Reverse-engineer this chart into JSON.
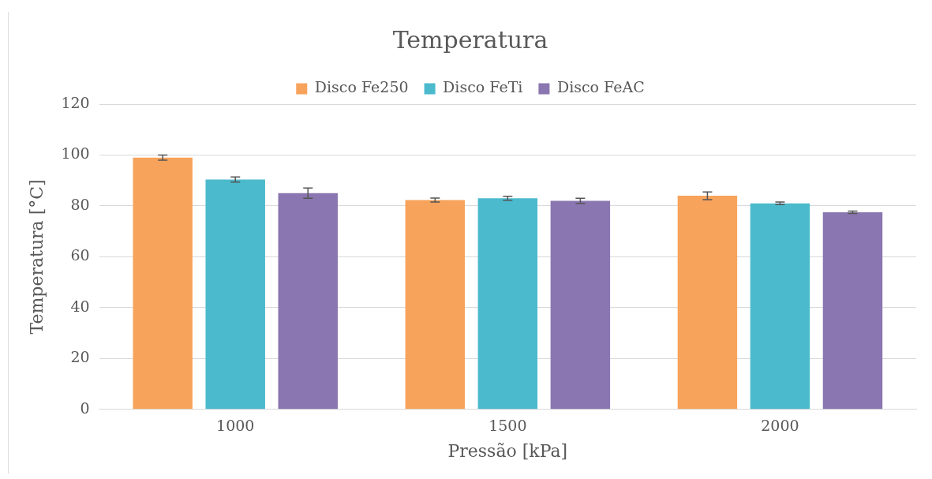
{
  "chart_data": {
    "type": "bar",
    "title": "Temperatura",
    "xlabel": "Pressão [kPa]",
    "ylabel": "Temperatura [°C]",
    "categories": [
      "1000",
      "1500",
      "2000"
    ],
    "series": [
      {
        "name": "Disco Fe250",
        "color": "#f7a35c",
        "values": [
          99,
          82.3,
          84
        ],
        "errors": [
          1,
          0.8,
          1.5
        ]
      },
      {
        "name": "Disco FeTi",
        "color": "#4bbacd",
        "values": [
          90.4,
          83,
          81
        ],
        "errors": [
          1,
          0.8,
          0.5
        ]
      },
      {
        "name": "Disco FeAC",
        "color": "#8a76b0",
        "values": [
          85,
          82,
          77.5
        ],
        "errors": [
          2,
          1,
          0.5
        ]
      }
    ],
    "ylim": [
      0,
      120
    ],
    "yticks": [
      0,
      20,
      40,
      60,
      80,
      100,
      120
    ],
    "grid": "y",
    "legend": "top"
  }
}
